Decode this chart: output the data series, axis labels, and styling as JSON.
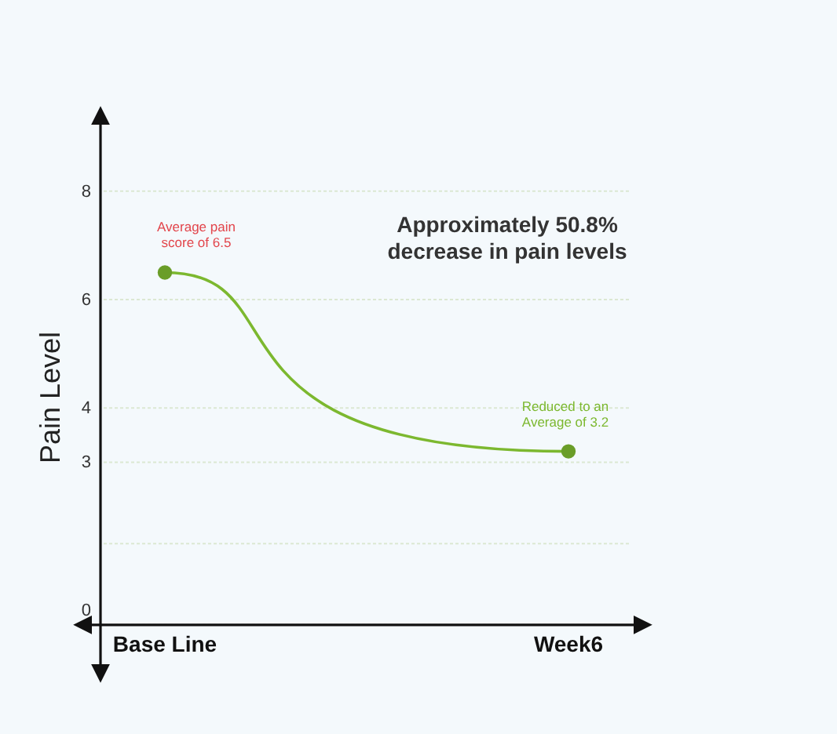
{
  "chart_data": {
    "type": "line",
    "ylabel": "Pain Level",
    "annotations": [
      {
        "text": "Average pain score of 6.5",
        "x": "Base Line",
        "y": 6.5
      },
      {
        "text": "Reduced to an Average of 3.2",
        "x": "Week6",
        "y": 3.2
      },
      "Approximately 50.8% decrease in pain levels"
    ],
    "categories": [
      "Base Line",
      "Week6"
    ],
    "ylim": [
      -1,
      9.5
    ],
    "yticks": [
      0,
      {
        "value": 1.5,
        "label": null
      },
      3,
      4,
      6,
      8
    ],
    "grid": "y",
    "marker": "circle",
    "series": [
      {
        "color": "#7cb82f",
        "values": [
          6.5,
          3.2
        ]
      }
    ]
  }
}
